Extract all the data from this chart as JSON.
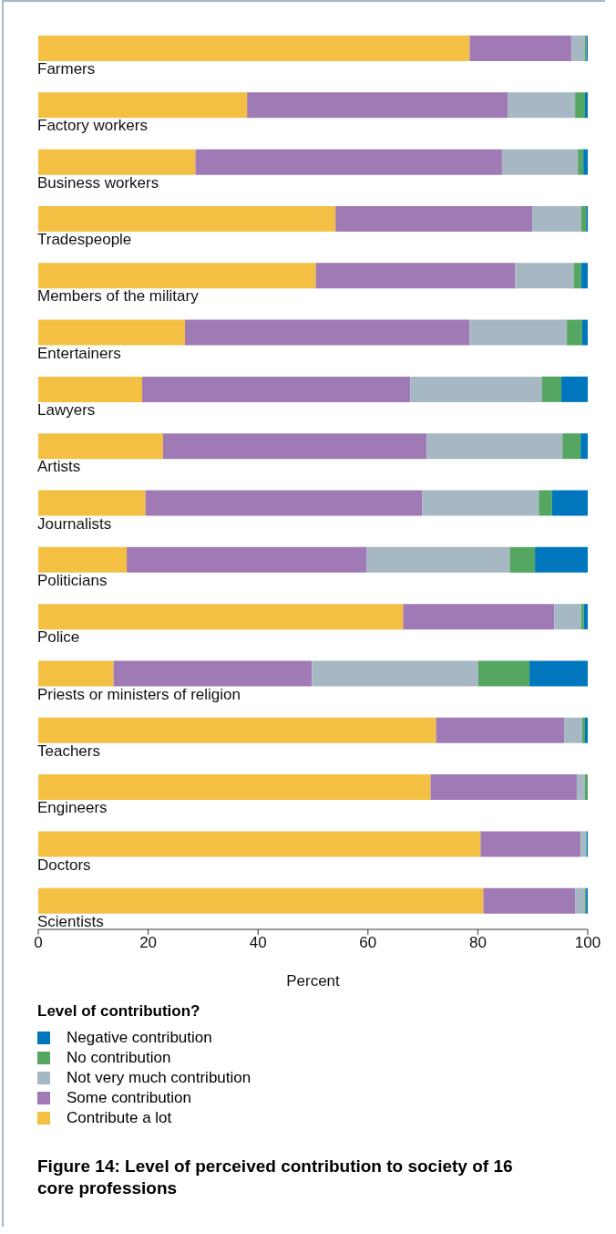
{
  "chart_data": {
    "type": "bar",
    "orientation": "horizontal",
    "stacked": true,
    "title": "Figure 14: Level of perceived contribution to society of 16 core professions",
    "xlabel": "Percent",
    "legend_title": "Level of contribution?",
    "legend": "bottom",
    "xlim": [
      0,
      100
    ],
    "xticks": [
      0,
      20,
      40,
      60,
      80,
      100
    ],
    "categories": [
      "Farmers",
      "Factory workers",
      "Business workers",
      "Tradespeople",
      "Members of the military",
      "Entertainers",
      "Lawyers",
      "Artists",
      "Journalists",
      "Politicians",
      "Police",
      "Priests or ministers of religion",
      "Teachers",
      "Engineers",
      "Doctors",
      "Scientists"
    ],
    "series": [
      {
        "name": "Contribute a lot",
        "color": "#f3c043",
        "values": [
          78.5,
          38,
          28.6,
          54.1,
          50.5,
          26.7,
          18.9,
          22.7,
          19.5,
          16.1,
          66.4,
          13.7,
          72.4,
          71.4,
          80.5,
          81
        ]
      },
      {
        "name": "Some contribution",
        "color": "#9f7ab4",
        "values": [
          18.5,
          47.5,
          55.8,
          35.8,
          36.3,
          51.8,
          48.8,
          48,
          50.4,
          43.7,
          27.5,
          36.1,
          23.3,
          26.6,
          18.2,
          16.7
        ]
      },
      {
        "name": "Not very much contribution",
        "color": "#a5b8c3",
        "values": [
          2.5,
          12.2,
          13.8,
          8.9,
          10.7,
          17.7,
          24,
          24.7,
          21.2,
          26,
          4.9,
          30.3,
          3.3,
          1.5,
          1,
          1.8
        ]
      },
      {
        "name": "No contribution",
        "color": "#55a661",
        "values": [
          0.3,
          1.8,
          1,
          0.9,
          1.3,
          2.8,
          3.5,
          3.3,
          2.4,
          4.6,
          0.5,
          9.3,
          0.5,
          0.5,
          0.1,
          0.2
        ]
      },
      {
        "name": "Negative contribution",
        "color": "#0077bd",
        "values": [
          0.2,
          0.5,
          0.8,
          0.3,
          1.2,
          1,
          4.8,
          1.3,
          6.5,
          9.6,
          0.7,
          10.6,
          0.5,
          0,
          0.2,
          0.3
        ]
      }
    ]
  }
}
